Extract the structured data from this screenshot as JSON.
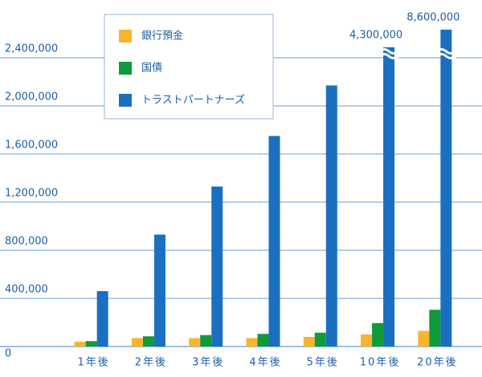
{
  "chart_data": {
    "type": "bar",
    "categories": [
      "1年後",
      "2年後",
      "3年後",
      "4年後",
      "5年後",
      "10年後",
      "20年後"
    ],
    "series": [
      {
        "name": "銀行預金",
        "color": "#f7b52c",
        "values": [
          40000,
          70000,
          70000,
          70000,
          80000,
          100000,
          130000
        ]
      },
      {
        "name": "国債",
        "color": "#0f9a3c",
        "values": [
          45000,
          85000,
          95000,
          105000,
          115000,
          195000,
          305000
        ]
      },
      {
        "name": "トラストパートナーズ",
        "color": "#1a6fc0",
        "values": [
          460000,
          930000,
          1330000,
          1750000,
          2170000,
          4300000,
          8600000
        ],
        "value_labels": [
          null,
          null,
          null,
          null,
          null,
          "4,300,000",
          "8,600,000"
        ]
      }
    ],
    "ylim": [
      0,
      2800000
    ],
    "yticks": [
      0,
      {
        "value": 400000,
        "label": "400,000"
      },
      {
        "value": 800000,
        "label": "800,000"
      },
      {
        "value": 1200000,
        "label": "1,200,000"
      },
      {
        "value": 1600000,
        "label": "1,600,000"
      },
      {
        "value": 2000000,
        "label": "2,000,000"
      },
      {
        "value": 2400000,
        "label": "2,400,000"
      }
    ],
    "grid": true
  }
}
